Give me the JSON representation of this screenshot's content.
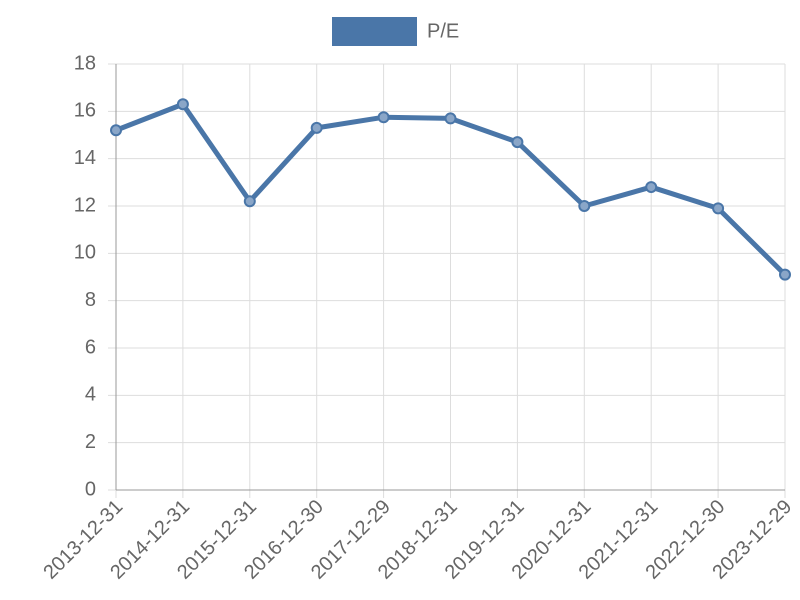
{
  "chart_data": {
    "type": "line",
    "categories": [
      "2013-12-31",
      "2014-12-31",
      "2015-12-31",
      "2016-12-30",
      "2017-12-29",
      "2018-12-31",
      "2019-12-31",
      "2020-12-31",
      "2021-12-31",
      "2022-12-30",
      "2023-12-29"
    ],
    "series": [
      {
        "name": "P/E",
        "color": "#4a76a8",
        "values": [
          15.2,
          16.3,
          12.2,
          15.3,
          15.75,
          15.7,
          14.7,
          12.0,
          12.8,
          11.9,
          9.1
        ]
      }
    ],
    "ylim": [
      0,
      18
    ],
    "yticks": [
      0,
      2,
      4,
      6,
      8,
      10,
      12,
      14,
      16,
      18
    ],
    "grid": true,
    "legend": "top"
  }
}
